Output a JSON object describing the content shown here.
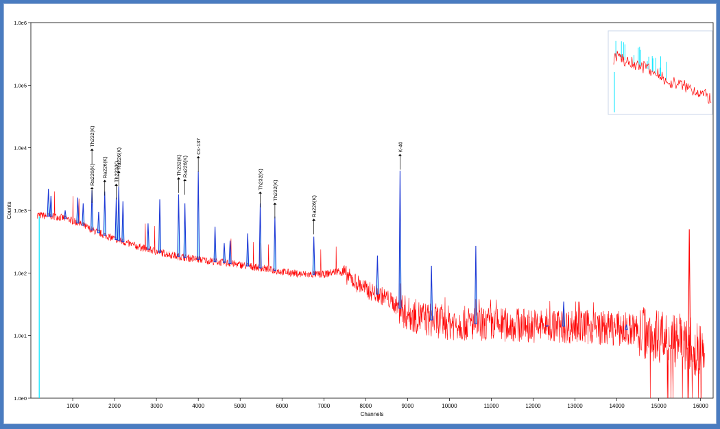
{
  "chart_data": {
    "type": "line",
    "title": "",
    "xlabel": "Channels",
    "ylabel": "Counts",
    "y_scale": "log",
    "xlim": [
      0,
      16300
    ],
    "ylim": [
      1,
      1000000
    ],
    "x_ticks": [
      1000,
      2000,
      3000,
      4000,
      5000,
      6000,
      7000,
      8000,
      9000,
      10000,
      11000,
      12000,
      13000,
      14000,
      15000,
      16000
    ],
    "y_ticks": [
      {
        "value": 1,
        "label": "1.0e0"
      },
      {
        "value": 10,
        "label": "1.0e1"
      },
      {
        "value": 100,
        "label": "1.0e2"
      },
      {
        "value": 1000,
        "label": "1.0e3"
      },
      {
        "value": 10000,
        "label": "1.0e4"
      },
      {
        "value": 100000,
        "label": "1.0e5"
      },
      {
        "value": 1000000,
        "label": "1.0e6"
      }
    ],
    "grid": false,
    "legend": "none",
    "colors": {
      "measured": "#ff0000",
      "peaks": "#1f3ad6",
      "peak_fill": "#00e5ff",
      "marker": "#000000"
    },
    "baseline": {
      "x": [
        150,
        300,
        600,
        900,
        1200,
        1500,
        2000,
        2500,
        3000,
        3500,
        4000,
        4500,
        5000,
        5500,
        6000,
        6500,
        7000,
        7400,
        7600,
        8000,
        8500,
        8800,
        9000,
        9500,
        10000,
        11000,
        12000,
        13000,
        14000,
        14500,
        15000,
        15500,
        16000,
        16100
      ],
      "y": [
        850,
        820,
        800,
        720,
        600,
        470,
        350,
        270,
        220,
        185,
        165,
        150,
        135,
        120,
        105,
        95,
        95,
        110,
        85,
        55,
        40,
        28,
        22,
        18,
        16,
        15,
        14.5,
        14,
        13,
        12,
        10,
        8,
        6,
        5
      ]
    },
    "peaks": [
      {
        "x": 420,
        "y": 2200
      },
      {
        "x": 480,
        "y": 1700
      },
      {
        "x": 820,
        "y": 1000
      },
      {
        "x": 1120,
        "y": 1600
      },
      {
        "x": 1250,
        "y": 1300
      },
      {
        "x": 1460,
        "y": 2100
      },
      {
        "x": 1620,
        "y": 950
      },
      {
        "x": 1765,
        "y": 2000
      },
      {
        "x": 2040,
        "y": 1600
      },
      {
        "x": 2100,
        "y": 2400
      },
      {
        "x": 2200,
        "y": 1400
      },
      {
        "x": 2800,
        "y": 620
      },
      {
        "x": 3080,
        "y": 1500
      },
      {
        "x": 3530,
        "y": 1800
      },
      {
        "x": 3680,
        "y": 1300
      },
      {
        "x": 4000,
        "y": 4200
      },
      {
        "x": 4400,
        "y": 550
      },
      {
        "x": 4620,
        "y": 300
      },
      {
        "x": 4760,
        "y": 330
      },
      {
        "x": 5180,
        "y": 430
      },
      {
        "x": 5480,
        "y": 1300
      },
      {
        "x": 5830,
        "y": 800
      },
      {
        "x": 6760,
        "y": 380
      },
      {
        "x": 8280,
        "y": 190
      },
      {
        "x": 8820,
        "y": 4300
      },
      {
        "x": 9570,
        "y": 130
      },
      {
        "x": 10630,
        "y": 270
      },
      {
        "x": 12330,
        "y": 14
      },
      {
        "x": 12730,
        "y": 35
      },
      {
        "x": 14230,
        "y": 15
      },
      {
        "x": 15730,
        "y": 500
      }
    ],
    "annotations": [
      {
        "label": "Ra226(K)",
        "x": 1460,
        "y": 2300
      },
      {
        "label": "Th232(K)",
        "x": 1460,
        "y": 9500
      },
      {
        "label": "Ra226(K)",
        "x": 1765,
        "y": 3000
      },
      {
        "label": "Th232(K)",
        "x": 2040,
        "y": 2600
      },
      {
        "label": "Ra226(K)",
        "x": 2100,
        "y": 4200
      },
      {
        "label": "Th232(K)",
        "x": 3530,
        "y": 3300
      },
      {
        "label": "Ra226(K)",
        "x": 3680,
        "y": 3100
      },
      {
        "label": "Cs-137",
        "x": 4000,
        "y": 7200
      },
      {
        "label": "Th232(K)",
        "x": 5480,
        "y": 1950
      },
      {
        "label": "Th232(K)",
        "x": 5830,
        "y": 1300
      },
      {
        "label": "Ra226(K)",
        "x": 6760,
        "y": 720
      },
      {
        "label": "K-40",
        "x": 8820,
        "y": 7800
      }
    ],
    "inset": {
      "description_free": true,
      "baseline_y": [
        900,
        1100,
        850,
        780,
        700,
        620,
        560,
        500,
        420,
        360,
        300,
        260,
        240,
        220,
        200,
        180,
        160,
        140,
        120,
        100
      ]
    }
  }
}
